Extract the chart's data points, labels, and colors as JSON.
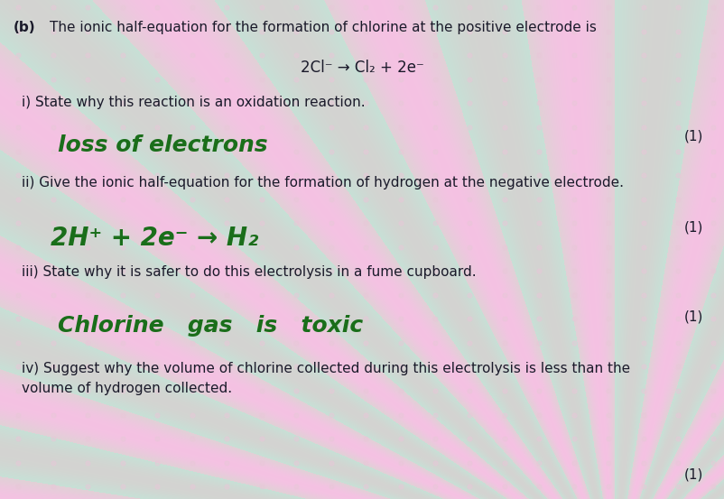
{
  "background_color": "#d8ead8",
  "title_b": "(b)",
  "title_text": "The ionic half-equation for the formation of chlorine at the positive electrode is",
  "equation": "2Cl⁻ → Cl₂ + 2e⁻",
  "qi_label": "i) State why this reaction is an oxidation reaction.",
  "qi_answer": "loss of electrons",
  "qii_label": "ii) Give the ionic half-equation for the formation of hydrogen at the negative electrode.",
  "qii_answer": "2H⁺ + 2e⁻ → H₂",
  "qiii_label": "iii) State why it is safer to do this electrolysis in a fume cupboard.",
  "qiii_answer": "Chlorine   gas   is   toxic",
  "qiv_label": "iv) Suggest why the volume of chlorine collected during this electrolysis is less than the\nvolume of hydrogen collected.",
  "mark_1": "(1)",
  "answer_color": "#1a6e1a",
  "text_color": "#1a1a2a",
  "label_color": "#1a1a2a",
  "fig_width": 8.02,
  "fig_height": 5.53,
  "dpi": 100
}
